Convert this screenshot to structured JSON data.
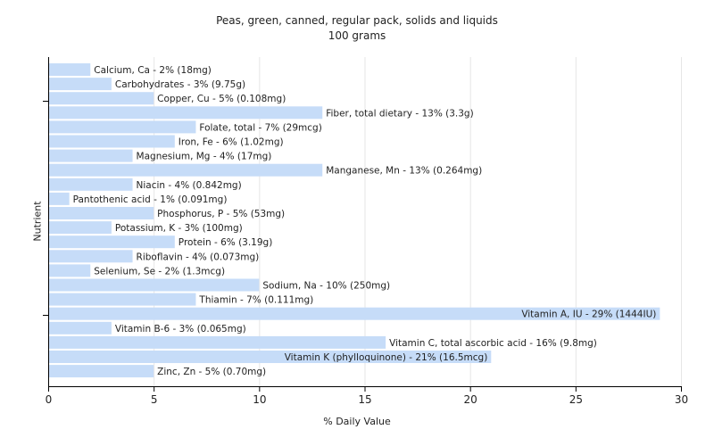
{
  "chart_data": {
    "type": "bar",
    "orientation": "horizontal",
    "title": "Peas, green, canned, regular pack, solids and liquids",
    "subtitle": "100 grams",
    "xlabel": "% Daily Value",
    "ylabel": "Nutrient",
    "xlim": [
      0,
      30
    ],
    "xticks": [
      0,
      5,
      10,
      15,
      20,
      25,
      30
    ],
    "grid": "vertical",
    "bar_color": "#c6dcf8",
    "categories": [
      "Calcium, Ca - 2% (18mg)",
      "Carbohydrates - 3% (9.75g)",
      "Copper, Cu - 5% (0.108mg)",
      "Fiber, total dietary - 13% (3.3g)",
      "Folate, total - 7% (29mcg)",
      "Iron, Fe - 6% (1.02mg)",
      "Magnesium, Mg - 4% (17mg)",
      "Manganese, Mn - 13% (0.264mg)",
      "Niacin - 4% (0.842mg)",
      "Pantothenic acid - 1% (0.091mg)",
      "Phosphorus, P - 5% (53mg)",
      "Potassium, K - 3% (100mg)",
      "Protein - 6% (3.19g)",
      "Riboflavin - 4% (0.073mg)",
      "Selenium, Se - 2% (1.3mcg)",
      "Sodium, Na - 10% (250mg)",
      "Thiamin - 7% (0.111mg)",
      "Vitamin A, IU - 29% (1444IU)",
      "Vitamin B-6 - 3% (0.065mg)",
      "Vitamin C, total ascorbic acid - 16% (9.8mg)",
      "Vitamin K (phylloquinone) - 21% (16.5mcg)",
      "Zinc, Zn - 5% (0.70mg)"
    ],
    "values": [
      2,
      3,
      5,
      13,
      7,
      6,
      4,
      13,
      4,
      1,
      5,
      3,
      6,
      4,
      2,
      10,
      7,
      29,
      3,
      16,
      21,
      5
    ]
  }
}
